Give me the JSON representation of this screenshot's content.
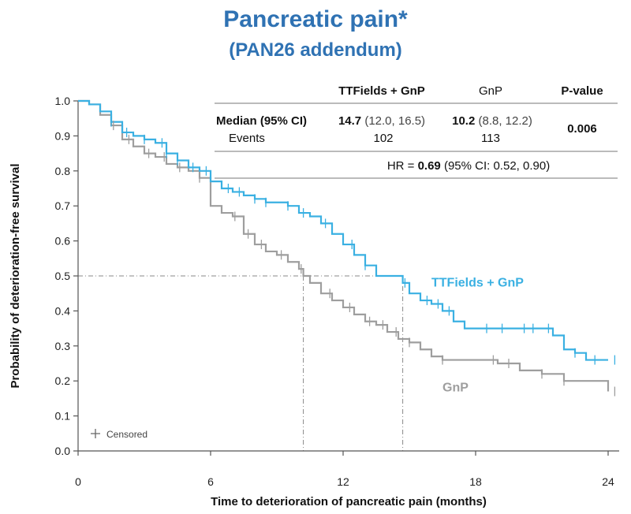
{
  "title": "Pancreatic pain*",
  "subtitle": "(PAN26 addendum)",
  "colors": {
    "ttfields": "#3ab0e2",
    "gnp": "#9e9e9e",
    "title": "#2f72b3"
  },
  "table": {
    "header_ttf": "TTFields + GnP",
    "header_gnp": "GnP",
    "header_p": "P-value",
    "row_median_label": "Median (95% CI)",
    "ttf_median": "14.7",
    "ttf_ci": " (12.0, 16.5)",
    "gnp_median": "10.2",
    "gnp_ci": " (8.8, 12.2)",
    "p_value": "0.006",
    "row_events_label": "Events",
    "ttf_events": "102",
    "gnp_events": "113",
    "hr_prefix": "HR = ",
    "hr_value": "0.69",
    "hr_ci": " (95% CI: 0.52, 0.90)"
  },
  "chart_data": {
    "type": "line",
    "xlabel": "Time to deterioration of pancreatic pain (months)",
    "ylabel": "Probability of deterioration-free survival",
    "xlim": [
      0,
      24.5
    ],
    "ylim": [
      0,
      1.0
    ],
    "xticks": [
      "0",
      "6",
      "12",
      "18",
      "24"
    ],
    "yticks": [
      "0.0",
      "0.1",
      "0.2",
      "0.3",
      "0.4",
      "0.5",
      "0.6",
      "0.7",
      "0.8",
      "0.9",
      "1.0"
    ],
    "legend_censored": "Censored",
    "median_reference": 0.5,
    "series": [
      {
        "name": "TTFields + GnP",
        "x": [
          0,
          0.5,
          1,
          1.5,
          2,
          2.5,
          3,
          3.5,
          4,
          4.5,
          5,
          5.5,
          6,
          6.5,
          7,
          7.5,
          8,
          8.5,
          9,
          9.5,
          10,
          10.5,
          11,
          11.5,
          12,
          12.5,
          13,
          13.5,
          14,
          14.5,
          14.7,
          15,
          15.5,
          16,
          16.5,
          17,
          17.5,
          18,
          18.5,
          19,
          20,
          21,
          21.5,
          22,
          22.5,
          23,
          24
        ],
        "y": [
          1.0,
          0.99,
          0.97,
          0.94,
          0.91,
          0.9,
          0.89,
          0.88,
          0.85,
          0.83,
          0.81,
          0.8,
          0.77,
          0.75,
          0.74,
          0.73,
          0.72,
          0.71,
          0.71,
          0.7,
          0.68,
          0.67,
          0.65,
          0.62,
          0.59,
          0.56,
          0.53,
          0.5,
          0.5,
          0.5,
          0.48,
          0.45,
          0.43,
          0.42,
          0.4,
          0.37,
          0.35,
          0.35,
          0.35,
          0.35,
          0.35,
          0.35,
          0.33,
          0.29,
          0.28,
          0.26,
          0.26
        ],
        "censored_x": [
          1.5,
          2.2,
          3.0,
          3.8,
          4.0,
          4.5,
          5.2,
          5.8,
          6.8,
          7.3,
          8.0,
          8.5,
          9.5,
          10.2,
          11.2,
          12.4,
          13.0,
          14.8,
          15.8,
          16.3,
          16.8,
          18.5,
          19.2,
          20.2,
          20.6,
          21.3,
          22.5,
          23.4,
          24.3
        ]
      },
      {
        "name": "GnP",
        "x": [
          0,
          0.5,
          1,
          1.5,
          2,
          2.5,
          3,
          3.5,
          4,
          4.5,
          5,
          5.5,
          6,
          6.5,
          7,
          7.5,
          8,
          8.5,
          9,
          9.5,
          10,
          10.2,
          10.5,
          11,
          11.5,
          12,
          12.5,
          13,
          13.5,
          14,
          14.5,
          15,
          15.5,
          16,
          16.5,
          17,
          17.5,
          18,
          19,
          20,
          21,
          22,
          23,
          24
        ],
        "y": [
          1.0,
          0.99,
          0.96,
          0.93,
          0.89,
          0.87,
          0.85,
          0.84,
          0.82,
          0.81,
          0.8,
          0.78,
          0.7,
          0.68,
          0.67,
          0.62,
          0.59,
          0.57,
          0.56,
          0.54,
          0.52,
          0.5,
          0.48,
          0.45,
          0.43,
          0.41,
          0.39,
          0.37,
          0.36,
          0.34,
          0.32,
          0.31,
          0.29,
          0.27,
          0.26,
          0.26,
          0.26,
          0.26,
          0.25,
          0.23,
          0.22,
          0.2,
          0.2,
          0.17
        ],
        "censored_x": [
          1.6,
          2.3,
          3.2,
          3.9,
          4.6,
          5.5,
          7.1,
          7.7,
          8.3,
          9.2,
          10.1,
          11.4,
          12.3,
          13.2,
          13.8,
          14.4,
          15.0,
          16.5,
          18.8,
          19.5,
          21.0,
          22.0,
          24.3
        ]
      }
    ],
    "series_labels": [
      {
        "text": "TTFields + GnP",
        "x": 16.0,
        "y": 0.47
      },
      {
        "text": "GnP",
        "x": 16.5,
        "y": 0.17
      }
    ],
    "median_drop_lines": [
      10.2,
      14.7
    ]
  }
}
